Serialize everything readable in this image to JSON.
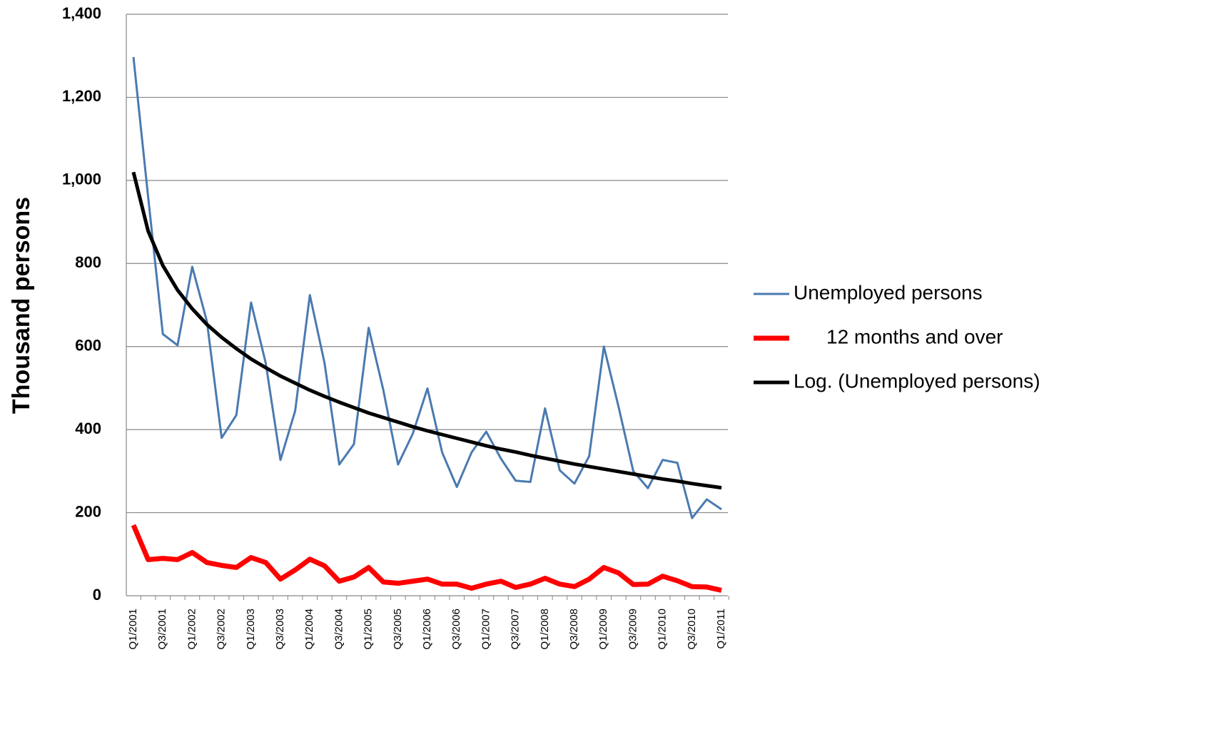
{
  "chart_data": {
    "type": "line",
    "y_label": "Thousand persons",
    "categories": [
      "Q1/2001",
      null,
      "Q3/2001",
      null,
      "Q1/2002",
      null,
      "Q3/2002",
      null,
      "Q1/2003",
      null,
      "Q3/2003",
      null,
      "Q1/2004",
      null,
      "Q3/2004",
      null,
      "Q1/2005",
      null,
      "Q3/2005",
      null,
      "Q1/2006",
      null,
      "Q3/2006",
      null,
      "Q1/2007",
      null,
      "Q3/2007",
      null,
      "Q1/2008",
      null,
      "Q3/2008",
      null,
      "Q1/2009",
      null,
      "Q3/2009",
      null,
      "Q1/2010",
      null,
      "Q3/2010",
      null,
      "Q1/2011"
    ],
    "series": [
      {
        "name": "Unemployed persons",
        "color": "#4a7ab0",
        "values": [
          1297,
          960,
          630,
          603,
          792,
          660,
          380,
          435,
          706,
          560,
          327,
          445,
          724,
          560,
          316,
          365,
          645,
          495,
          316,
          390,
          499,
          345,
          262,
          345,
          395,
          330,
          277,
          274,
          451,
          302,
          270,
          336,
          600,
          455,
          300,
          259,
          327,
          320,
          187,
          232,
          208
        ]
      },
      {
        "name": "12 months and over",
        "color": "#ff0000",
        "values": [
          170,
          87,
          90,
          87,
          104,
          80,
          73,
          68,
          92,
          80,
          40,
          62,
          88,
          72,
          35,
          45,
          68,
          33,
          30,
          35,
          40,
          28,
          28,
          18,
          28,
          35,
          20,
          28,
          42,
          28,
          22,
          40,
          68,
          55,
          27,
          28,
          47,
          36,
          22,
          21,
          13
        ]
      },
      {
        "name": "Log. (Unemployed persons)",
        "color": "#000000",
        "values": [
          1020,
          878,
          795,
          736,
          691,
          653,
          622,
          595,
          570,
          549,
          529,
          512,
          495,
          480,
          466,
          453,
          440,
          429,
          418,
          407,
          397,
          388,
          379,
          370,
          361,
          353,
          346,
          338,
          331,
          324,
          317,
          311,
          305,
          299,
          293,
          287,
          281,
          276,
          270,
          265,
          260
        ]
      }
    ],
    "ylim": [
      0,
      1400
    ],
    "yticks": [
      0,
      200,
      400,
      600,
      800,
      {
        "value": 1000,
        "label": "1,000"
      },
      {
        "value": 1200,
        "label": "1,200"
      },
      {
        "value": 1400,
        "label": "1,400"
      }
    ],
    "grid": true
  }
}
